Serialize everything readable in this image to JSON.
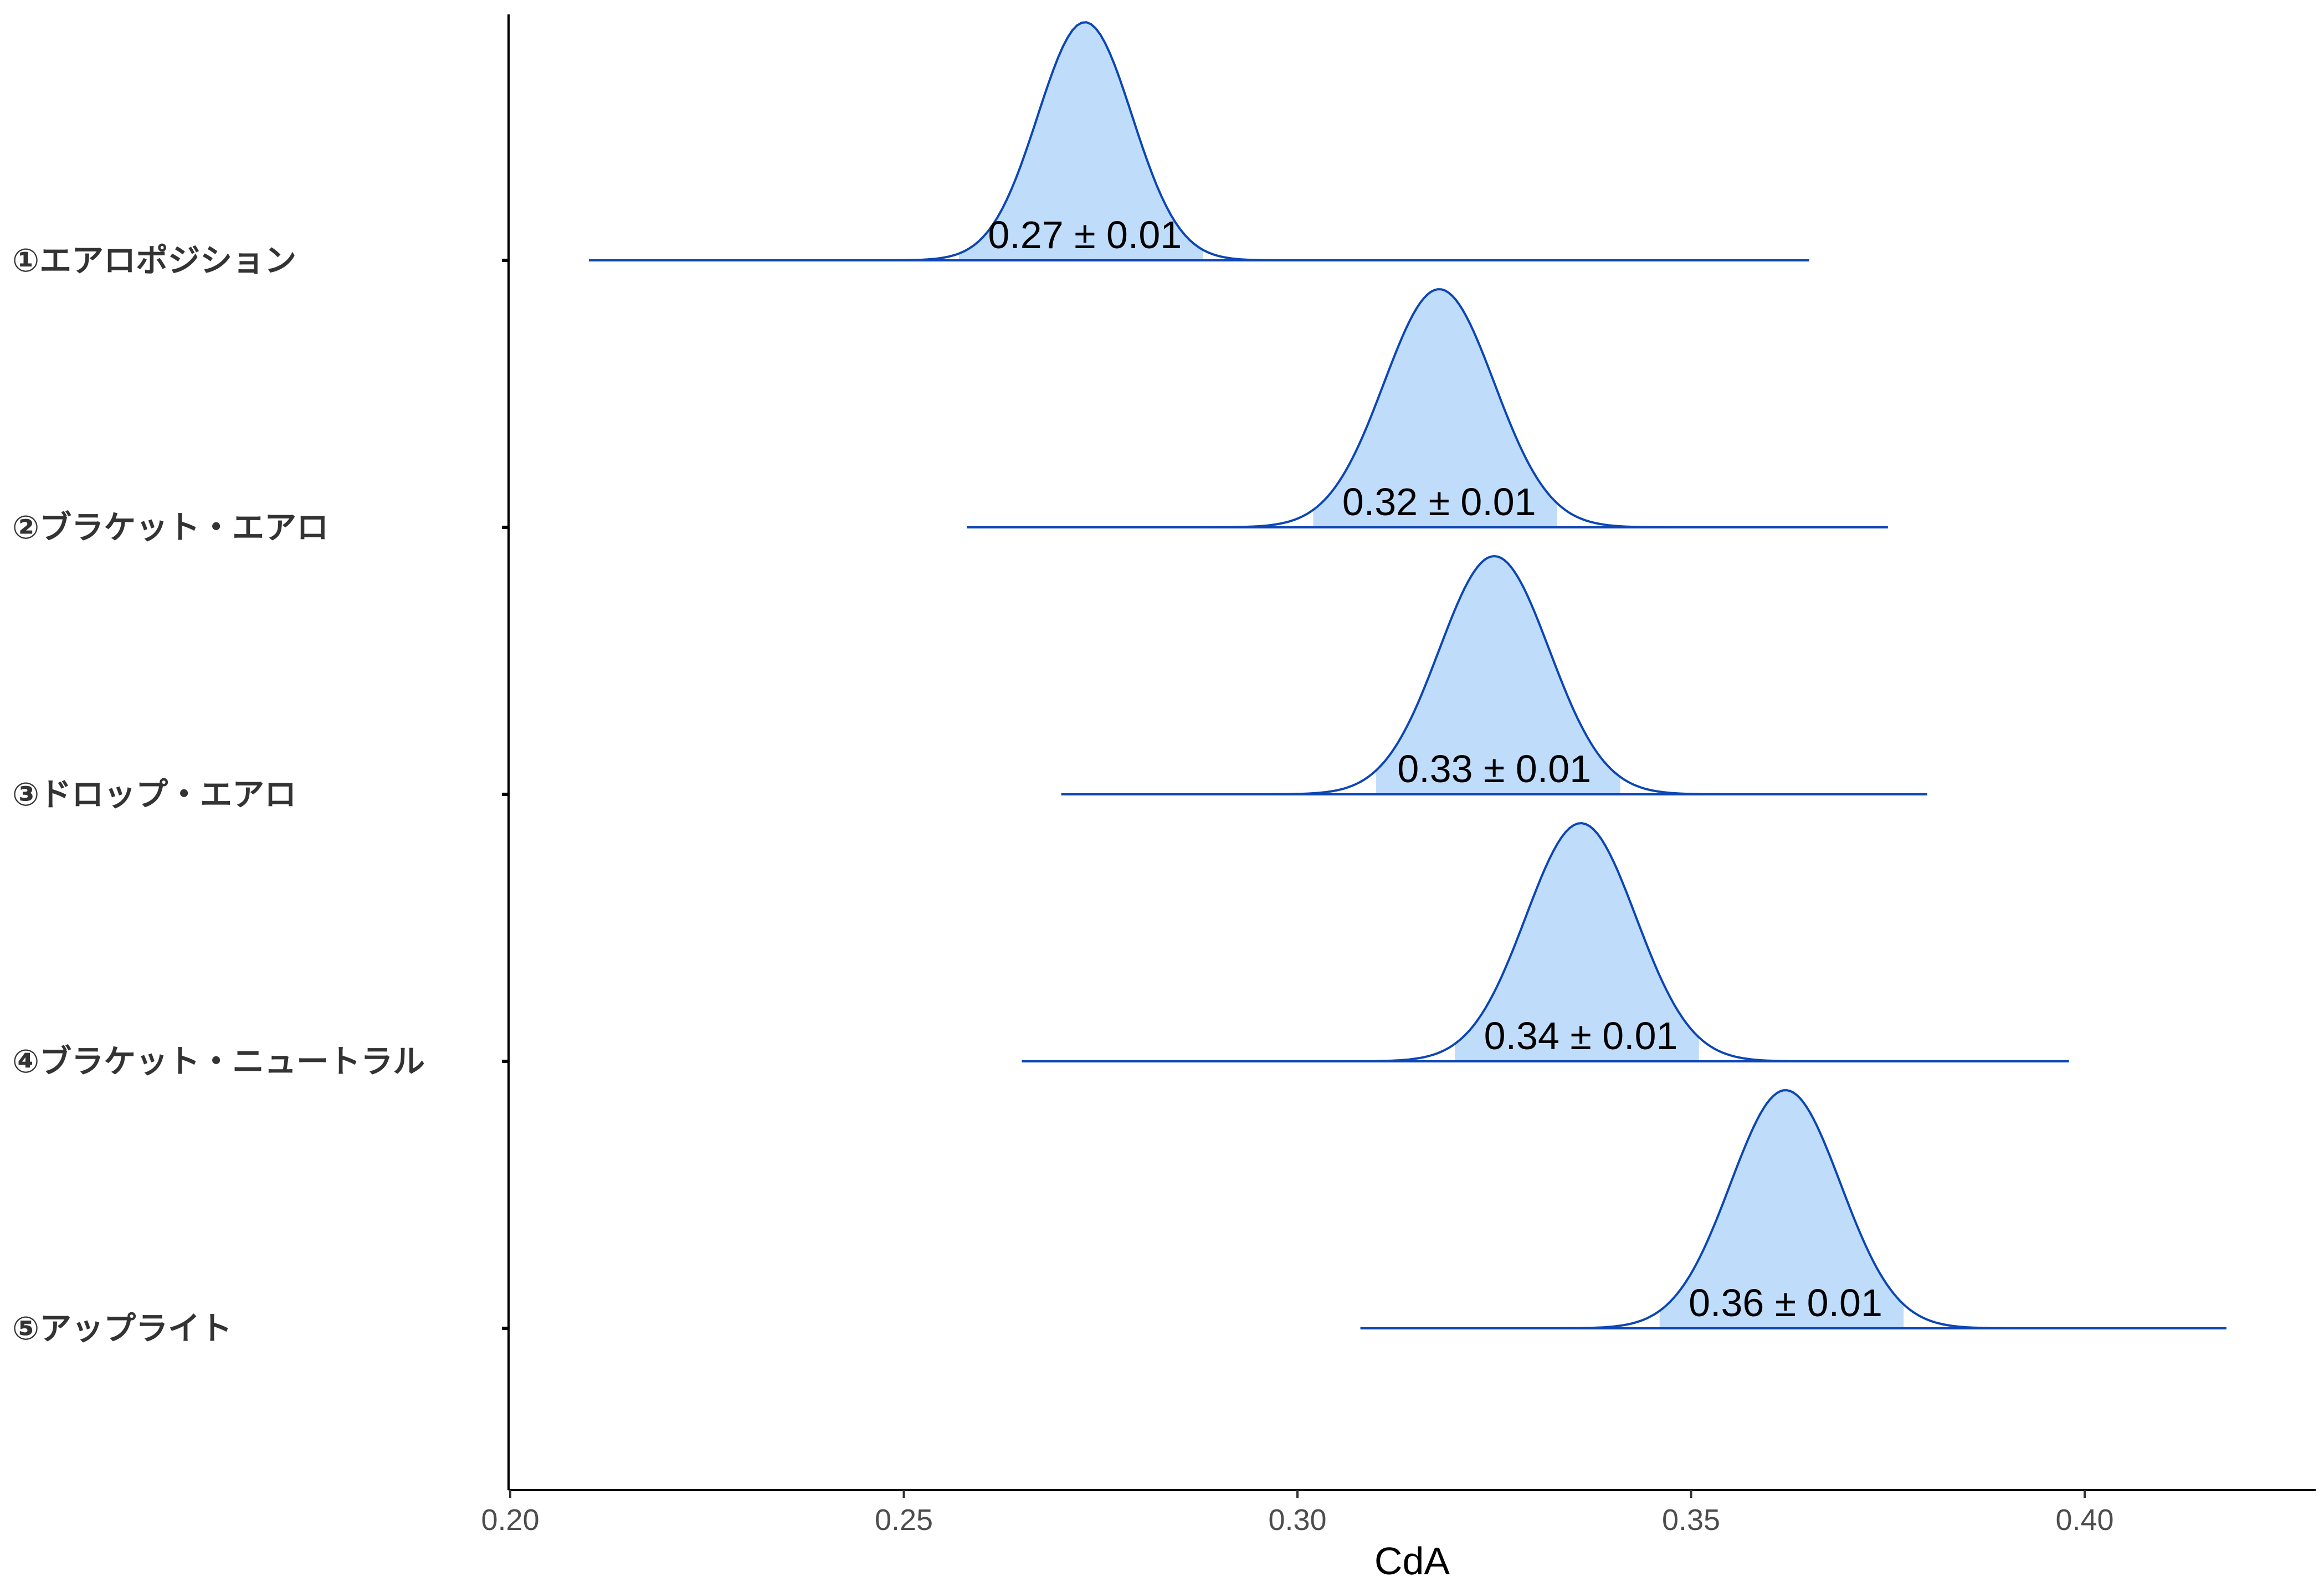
{
  "chart_data": {
    "type": "ridgeline",
    "title": "",
    "xlabel": "CdA",
    "ylabel": "",
    "xlim": [
      0.2,
      0.43
    ],
    "x_ticks": [
      0.2,
      0.25,
      0.3,
      0.35,
      0.4
    ],
    "x_tick_labels": [
      "0.20",
      "0.25",
      "0.30",
      "0.35",
      "0.40"
    ],
    "grid": false,
    "legend": "none",
    "fill_color": "#bfdcfb",
    "line_color": "#0b46b4",
    "series": [
      {
        "name": "①エアロポジション",
        "mean": 0.273,
        "sd": 0.006,
        "range": [
          0.21,
          0.365
        ],
        "interval": [
          0.257,
          0.288
        ],
        "label": "0.27 ± 0.01"
      },
      {
        "name": "②ブラケット・エアロ",
        "mean": 0.318,
        "sd": 0.007,
        "range": [
          0.258,
          0.375
        ],
        "interval": [
          0.302,
          0.333
        ],
        "label": "0.32 ± 0.01"
      },
      {
        "name": "③ドロップ・エアロ",
        "mean": 0.325,
        "sd": 0.007,
        "range": [
          0.27,
          0.38
        ],
        "interval": [
          0.31,
          0.341
        ],
        "label": "0.33 ± 0.01"
      },
      {
        "name": "④ブラケット・ニュートラル",
        "mean": 0.336,
        "sd": 0.007,
        "range": [
          0.265,
          0.398
        ],
        "interval": [
          0.32,
          0.351
        ],
        "label": "0.34 ± 0.01"
      },
      {
        "name": "⑤アップライト",
        "mean": 0.362,
        "sd": 0.007,
        "range": [
          0.308,
          0.418
        ],
        "interval": [
          0.346,
          0.377
        ],
        "label": "0.36 ± 0.01"
      }
    ]
  }
}
